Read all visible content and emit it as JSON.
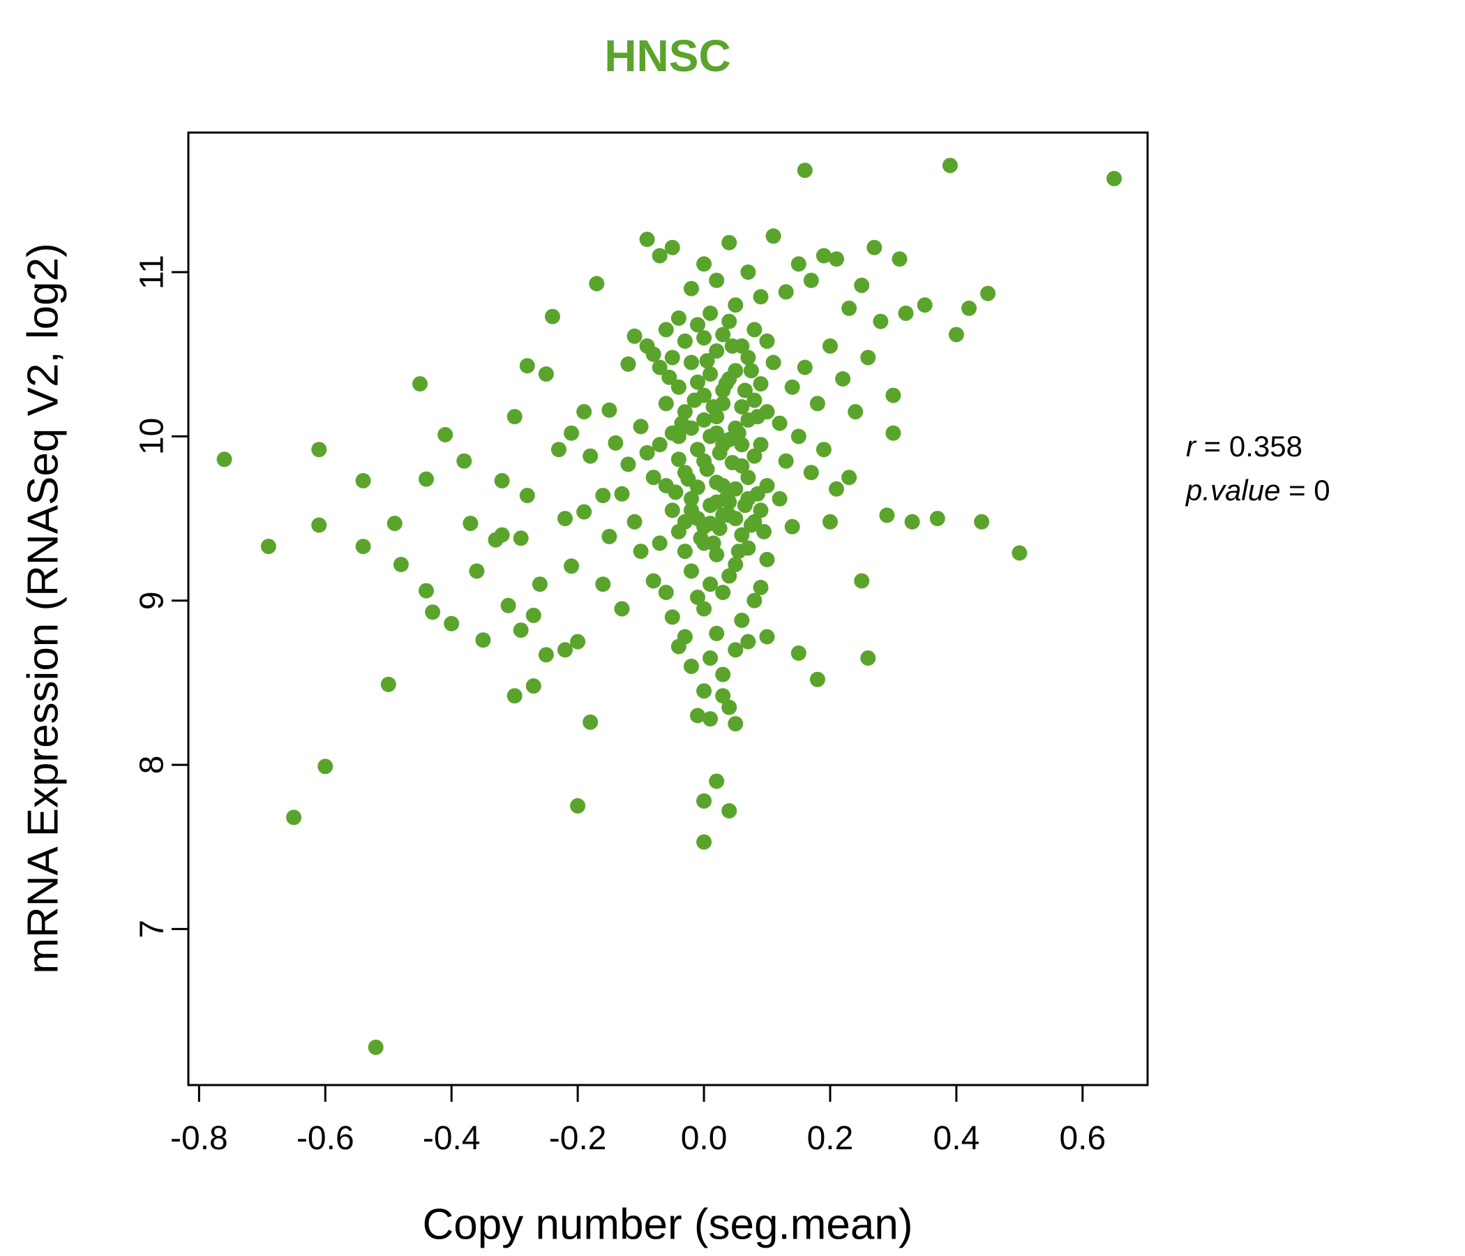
{
  "title": "HNSC",
  "x_axis_label": "Copy number (seg.mean)",
  "y_axis_label": "mRNA Expression (RNASeq V2, log2)",
  "annotation": {
    "r_label": "r",
    "r_value": " = 0.358",
    "p_label": "p.value",
    "p_value": " = 0"
  },
  "chart_data": {
    "type": "scatter",
    "title": "HNSC",
    "xlabel": "Copy number (seg.mean)",
    "ylabel": "mRNA Expression (RNASeq V2, log2)",
    "xlim": [
      -0.817,
      0.703
    ],
    "ylim": [
      6.05,
      11.85
    ],
    "grid": false,
    "legend": "none",
    "title_color": "#5aa42c",
    "point_color": "#5aa42c",
    "frame_color": "#000000",
    "annotations": [
      "r = 0.358",
      "p.value = 0"
    ],
    "x_ticks": [
      {
        "v": -0.8,
        "label": "-0.8"
      },
      {
        "v": -0.6,
        "label": "-0.6"
      },
      {
        "v": -0.4,
        "label": "-0.4"
      },
      {
        "v": -0.2,
        "label": "-0.2"
      },
      {
        "v": 0.0,
        "label": "0.0"
      },
      {
        "v": 0.2,
        "label": "0.2"
      },
      {
        "v": 0.4,
        "label": "0.4"
      },
      {
        "v": 0.6,
        "label": "0.6"
      }
    ],
    "y_ticks": [
      {
        "v": 7,
        "label": "7"
      },
      {
        "v": 8,
        "label": "8"
      },
      {
        "v": 9,
        "label": "9"
      },
      {
        "v": 10,
        "label": "10"
      },
      {
        "v": 11,
        "label": "11"
      }
    ],
    "points": [
      [
        -0.76,
        9.86
      ],
      [
        -0.69,
        9.33
      ],
      [
        -0.65,
        7.68
      ],
      [
        -0.61,
        9.92
      ],
      [
        -0.61,
        9.46
      ],
      [
        -0.6,
        7.99
      ],
      [
        -0.54,
        9.73
      ],
      [
        -0.54,
        9.33
      ],
      [
        -0.52,
        6.28
      ],
      [
        -0.5,
        8.49
      ],
      [
        -0.49,
        9.47
      ],
      [
        -0.48,
        9.22
      ],
      [
        -0.45,
        10.32
      ],
      [
        -0.44,
        9.74
      ],
      [
        -0.44,
        9.06
      ],
      [
        -0.43,
        8.93
      ],
      [
        -0.41,
        10.01
      ],
      [
        -0.4,
        8.86
      ],
      [
        -0.38,
        9.85
      ],
      [
        -0.37,
        9.47
      ],
      [
        -0.36,
        9.18
      ],
      [
        -0.35,
        8.76
      ],
      [
        -0.33,
        9.37
      ],
      [
        -0.32,
        9.73
      ],
      [
        -0.32,
        9.4
      ],
      [
        -0.31,
        8.97
      ],
      [
        -0.3,
        10.12
      ],
      [
        -0.3,
        8.42
      ],
      [
        -0.29,
        9.38
      ],
      [
        -0.29,
        8.82
      ],
      [
        -0.28,
        10.43
      ],
      [
        -0.28,
        9.64
      ],
      [
        -0.27,
        8.91
      ],
      [
        -0.27,
        8.48
      ],
      [
        -0.26,
        9.1
      ],
      [
        -0.25,
        10.38
      ],
      [
        -0.25,
        8.67
      ],
      [
        -0.24,
        10.73
      ],
      [
        -0.23,
        9.92
      ],
      [
        -0.22,
        9.5
      ],
      [
        -0.22,
        8.7
      ],
      [
        -0.21,
        10.02
      ],
      [
        -0.21,
        9.21
      ],
      [
        -0.2,
        8.75
      ],
      [
        -0.2,
        7.75
      ],
      [
        -0.19,
        10.15
      ],
      [
        -0.19,
        9.54
      ],
      [
        -0.18,
        9.88
      ],
      [
        -0.18,
        8.26
      ],
      [
        -0.17,
        10.93
      ],
      [
        -0.16,
        9.64
      ],
      [
        -0.16,
        9.1
      ],
      [
        -0.15,
        10.16
      ],
      [
        -0.15,
        9.39
      ],
      [
        -0.14,
        9.96
      ],
      [
        -0.13,
        9.65
      ],
      [
        -0.13,
        8.95
      ],
      [
        -0.12,
        10.44
      ],
      [
        -0.12,
        9.83
      ],
      [
        -0.11,
        10.61
      ],
      [
        -0.11,
        9.48
      ],
      [
        -0.1,
        10.06
      ],
      [
        -0.1,
        9.3
      ],
      [
        -0.09,
        11.2
      ],
      [
        -0.09,
        10.55
      ],
      [
        -0.09,
        9.9
      ],
      [
        -0.08,
        10.5
      ],
      [
        -0.08,
        9.75
      ],
      [
        -0.08,
        9.12
      ],
      [
        -0.07,
        11.1
      ],
      [
        -0.07,
        10.42
      ],
      [
        -0.07,
        9.95
      ],
      [
        -0.07,
        9.35
      ],
      [
        -0.06,
        10.65
      ],
      [
        -0.06,
        10.2
      ],
      [
        -0.06,
        9.7
      ],
      [
        -0.06,
        9.05
      ],
      [
        -0.055,
        10.36
      ],
      [
        -0.05,
        11.15
      ],
      [
        -0.05,
        10.48
      ],
      [
        -0.05,
        10.02
      ],
      [
        -0.05,
        9.55
      ],
      [
        -0.05,
        8.9
      ],
      [
        -0.045,
        9.66
      ],
      [
        -0.04,
        10.72
      ],
      [
        -0.04,
        10.3
      ],
      [
        -0.04,
        9.86
      ],
      [
        -0.04,
        9.42
      ],
      [
        -0.04,
        8.72
      ],
      [
        -0.04,
        10.0
      ],
      [
        -0.035,
        10.08
      ],
      [
        -0.03,
        10.58
      ],
      [
        -0.03,
        10.15
      ],
      [
        -0.03,
        9.78
      ],
      [
        -0.03,
        9.3
      ],
      [
        -0.03,
        8.78
      ],
      [
        -0.03,
        9.48
      ],
      [
        -0.025,
        9.74
      ],
      [
        -0.02,
        10.9
      ],
      [
        -0.02,
        10.45
      ],
      [
        -0.02,
        10.05
      ],
      [
        -0.02,
        9.62
      ],
      [
        -0.02,
        9.18
      ],
      [
        -0.02,
        8.6
      ],
      [
        -0.02,
        9.55
      ],
      [
        -0.015,
        10.22
      ],
      [
        -0.01,
        10.68
      ],
      [
        -0.01,
        10.33
      ],
      [
        -0.01,
        9.92
      ],
      [
        -0.01,
        9.5
      ],
      [
        -0.01,
        9.02
      ],
      [
        -0.01,
        8.3
      ],
      [
        -0.01,
        9.69
      ],
      [
        -0.005,
        9.38
      ],
      [
        0.0,
        11.05
      ],
      [
        0.0,
        10.6
      ],
      [
        0.0,
        10.25
      ],
      [
        0.0,
        9.85
      ],
      [
        0.0,
        9.45
      ],
      [
        0.0,
        8.95
      ],
      [
        0.0,
        8.45
      ],
      [
        0.0,
        7.78
      ],
      [
        0.0,
        7.53
      ],
      [
        0.0,
        10.1
      ],
      [
        0.0,
        9.35
      ],
      [
        0.005,
        10.46
      ],
      [
        0.005,
        9.8
      ],
      [
        0.01,
        10.75
      ],
      [
        0.01,
        10.38
      ],
      [
        0.01,
        10.0
      ],
      [
        0.01,
        9.58
      ],
      [
        0.01,
        9.1
      ],
      [
        0.01,
        8.65
      ],
      [
        0.01,
        8.28
      ],
      [
        0.01,
        9.47
      ],
      [
        0.015,
        9.35
      ],
      [
        0.015,
        10.18
      ],
      [
        0.02,
        10.95
      ],
      [
        0.02,
        10.52
      ],
      [
        0.02,
        10.12
      ],
      [
        0.02,
        9.72
      ],
      [
        0.02,
        9.28
      ],
      [
        0.02,
        8.8
      ],
      [
        0.02,
        7.9
      ],
      [
        0.02,
        10.02
      ],
      [
        0.02,
        9.6
      ],
      [
        0.025,
        9.9
      ],
      [
        0.025,
        9.44
      ],
      [
        0.03,
        10.62
      ],
      [
        0.03,
        10.28
      ],
      [
        0.03,
        9.95
      ],
      [
        0.03,
        9.52
      ],
      [
        0.03,
        9.05
      ],
      [
        0.03,
        8.55
      ],
      [
        0.03,
        8.42
      ],
      [
        0.03,
        9.7
      ],
      [
        0.03,
        10.2
      ],
      [
        0.035,
        10.32
      ],
      [
        0.035,
        9.62
      ],
      [
        0.04,
        11.18
      ],
      [
        0.04,
        10.7
      ],
      [
        0.04,
        10.35
      ],
      [
        0.04,
        9.98
      ],
      [
        0.04,
        9.6
      ],
      [
        0.04,
        9.15
      ],
      [
        0.04,
        8.35
      ],
      [
        0.04,
        7.72
      ],
      [
        0.04,
        9.52
      ],
      [
        0.045,
        9.84
      ],
      [
        0.045,
        10.55
      ],
      [
        0.05,
        10.8
      ],
      [
        0.05,
        10.4
      ],
      [
        0.05,
        10.05
      ],
      [
        0.05,
        9.68
      ],
      [
        0.05,
        9.22
      ],
      [
        0.05,
        8.7
      ],
      [
        0.05,
        8.25
      ],
      [
        0.05,
        9.5
      ],
      [
        0.055,
        9.3
      ],
      [
        0.055,
        10.02
      ],
      [
        0.06,
        10.55
      ],
      [
        0.06,
        10.18
      ],
      [
        0.06,
        9.82
      ],
      [
        0.06,
        9.4
      ],
      [
        0.06,
        8.88
      ],
      [
        0.06,
        9.95
      ],
      [
        0.065,
        9.58
      ],
      [
        0.065,
        10.28
      ],
      [
        0.07,
        11.0
      ],
      [
        0.07,
        10.48
      ],
      [
        0.07,
        10.1
      ],
      [
        0.07,
        9.75
      ],
      [
        0.07,
        9.32
      ],
      [
        0.07,
        8.75
      ],
      [
        0.07,
        9.62
      ],
      [
        0.075,
        9.46
      ],
      [
        0.075,
        10.4
      ],
      [
        0.08,
        10.65
      ],
      [
        0.08,
        10.22
      ],
      [
        0.08,
        9.88
      ],
      [
        0.08,
        9.48
      ],
      [
        0.08,
        9.0
      ],
      [
        0.085,
        9.65
      ],
      [
        0.085,
        10.12
      ],
      [
        0.09,
        10.85
      ],
      [
        0.09,
        10.32
      ],
      [
        0.09,
        9.95
      ],
      [
        0.09,
        9.55
      ],
      [
        0.09,
        9.08
      ],
      [
        0.095,
        9.42
      ],
      [
        0.1,
        10.58
      ],
      [
        0.1,
        10.15
      ],
      [
        0.1,
        9.7
      ],
      [
        0.1,
        9.25
      ],
      [
        0.1,
        8.78
      ],
      [
        0.11,
        11.22
      ],
      [
        0.11,
        10.45
      ],
      [
        0.12,
        10.08
      ],
      [
        0.12,
        9.62
      ],
      [
        0.13,
        10.88
      ],
      [
        0.13,
        9.85
      ],
      [
        0.14,
        10.3
      ],
      [
        0.14,
        9.45
      ],
      [
        0.15,
        11.05
      ],
      [
        0.15,
        10.0
      ],
      [
        0.15,
        8.68
      ],
      [
        0.16,
        11.62
      ],
      [
        0.16,
        10.42
      ],
      [
        0.17,
        10.95
      ],
      [
        0.17,
        9.78
      ],
      [
        0.18,
        10.2
      ],
      [
        0.18,
        8.52
      ],
      [
        0.19,
        11.1
      ],
      [
        0.19,
        9.92
      ],
      [
        0.2,
        10.55
      ],
      [
        0.2,
        9.48
      ],
      [
        0.21,
        11.08
      ],
      [
        0.21,
        9.68
      ],
      [
        0.22,
        10.35
      ],
      [
        0.23,
        10.78
      ],
      [
        0.23,
        9.75
      ],
      [
        0.24,
        10.15
      ],
      [
        0.25,
        10.92
      ],
      [
        0.25,
        9.12
      ],
      [
        0.26,
        10.48
      ],
      [
        0.26,
        8.65
      ],
      [
        0.27,
        11.15
      ],
      [
        0.28,
        10.7
      ],
      [
        0.29,
        9.52
      ],
      [
        0.3,
        10.25
      ],
      [
        0.3,
        10.02
      ],
      [
        0.31,
        11.08
      ],
      [
        0.32,
        10.75
      ],
      [
        0.33,
        9.48
      ],
      [
        0.35,
        10.8
      ],
      [
        0.37,
        9.5
      ],
      [
        0.39,
        11.65
      ],
      [
        0.4,
        10.62
      ],
      [
        0.42,
        10.78
      ],
      [
        0.44,
        9.48
      ],
      [
        0.45,
        10.87
      ],
      [
        0.5,
        9.29
      ],
      [
        0.65,
        11.57
      ]
    ]
  }
}
